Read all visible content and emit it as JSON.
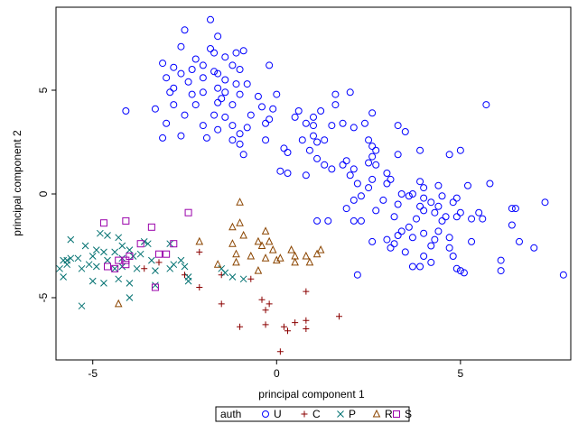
{
  "chart_data": {
    "type": "scatter",
    "xlabel": "principal component 1",
    "ylabel": "principal component 2",
    "xlim": [
      -6,
      8
    ],
    "ylim": [
      -8,
      9
    ],
    "xticks": [
      -5,
      0,
      5
    ],
    "yticks": [
      -5,
      0,
      5
    ],
    "grid": false,
    "legend": {
      "title": "auth",
      "placement": "bottom-center",
      "entries": [
        {
          "label": "U",
          "marker": "circle",
          "color": "#0000ff"
        },
        {
          "label": "C",
          "marker": "plus",
          "color": "#8b0000"
        },
        {
          "label": "P",
          "marker": "x",
          "color": "#007070"
        },
        {
          "label": "R",
          "marker": "triangle",
          "color": "#8b4500"
        },
        {
          "label": "S",
          "marker": "square",
          "color": "#9900aa"
        }
      ]
    },
    "series": [
      {
        "name": "U",
        "points": [
          [
            -1.8,
            8.4
          ],
          [
            -2.5,
            7.9
          ],
          [
            -1.6,
            7.6
          ],
          [
            -2.6,
            7.1
          ],
          [
            -1.8,
            7.0
          ],
          [
            -0.9,
            6.9
          ],
          [
            -1.7,
            6.8
          ],
          [
            -1.1,
            6.8
          ],
          [
            -1.4,
            6.6
          ],
          [
            -2.2,
            6.5
          ],
          [
            -3.1,
            6.3
          ],
          [
            -2.0,
            6.2
          ],
          [
            -1.2,
            6.2
          ],
          [
            -2.8,
            6.1
          ],
          [
            -0.2,
            6.2
          ],
          [
            -2.3,
            6.0
          ],
          [
            -1.7,
            5.9
          ],
          [
            -1.0,
            6.0
          ],
          [
            -2.6,
            5.8
          ],
          [
            -1.6,
            5.8
          ],
          [
            -2.0,
            5.6
          ],
          [
            -3.0,
            5.6
          ],
          [
            -1.4,
            5.5
          ],
          [
            -2.4,
            5.4
          ],
          [
            -1.1,
            5.3
          ],
          [
            -2.8,
            5.1
          ],
          [
            -1.6,
            5.1
          ],
          [
            -0.8,
            5.3
          ],
          [
            -2.9,
            4.9
          ],
          [
            -2.0,
            4.9
          ],
          [
            -1.4,
            4.9
          ],
          [
            -1.0,
            4.8
          ],
          [
            -2.3,
            4.8
          ],
          [
            -1.5,
            4.6
          ],
          [
            -0.5,
            4.7
          ],
          [
            0.0,
            4.8
          ],
          [
            2.0,
            4.9
          ],
          [
            1.6,
            4.8
          ],
          [
            -1.6,
            4.4
          ],
          [
            -2.8,
            4.3
          ],
          [
            -2.2,
            4.3
          ],
          [
            -1.2,
            4.3
          ],
          [
            -0.4,
            4.2
          ],
          [
            1.6,
            4.3
          ],
          [
            1.2,
            4.0
          ],
          [
            -4.1,
            4.0
          ],
          [
            -3.3,
            4.1
          ],
          [
            0.6,
            4.0
          ],
          [
            -2.5,
            3.8
          ],
          [
            -1.7,
            3.8
          ],
          [
            -1.4,
            3.7
          ],
          [
            -0.7,
            3.8
          ],
          [
            -0.1,
            4.1
          ],
          [
            0.5,
            3.7
          ],
          [
            1.0,
            3.7
          ],
          [
            -0.2,
            3.6
          ],
          [
            2.6,
            3.9
          ],
          [
            -3.0,
            3.4
          ],
          [
            -2.0,
            3.3
          ],
          [
            -1.2,
            3.3
          ],
          [
            -0.3,
            3.4
          ],
          [
            0.8,
            3.4
          ],
          [
            1.8,
            3.4
          ],
          [
            2.4,
            3.4
          ],
          [
            5.7,
            4.3
          ],
          [
            -1.6,
            3.1
          ],
          [
            -0.8,
            3.2
          ],
          [
            1.0,
            3.3
          ],
          [
            1.5,
            3.3
          ],
          [
            2.1,
            3.2
          ],
          [
            3.3,
            3.3
          ],
          [
            -3.1,
            2.7
          ],
          [
            -2.6,
            2.8
          ],
          [
            -1.2,
            2.6
          ],
          [
            1.0,
            2.8
          ],
          [
            3.5,
            3.0
          ],
          [
            1.1,
            2.5
          ],
          [
            1.3,
            2.6
          ],
          [
            0.7,
            2.6
          ],
          [
            0.2,
            2.2
          ],
          [
            -0.3,
            2.6
          ],
          [
            -1.9,
            2.7
          ],
          [
            -1.0,
            2.9
          ],
          [
            0.9,
            2.1
          ],
          [
            2.5,
            2.6
          ],
          [
            2.6,
            2.3
          ],
          [
            -1.0,
            2.4
          ],
          [
            0.3,
            2.0
          ],
          [
            3.3,
            1.9
          ],
          [
            3.9,
            2.1
          ],
          [
            -0.9,
            1.9
          ],
          [
            1.1,
            1.7
          ],
          [
            1.9,
            1.6
          ],
          [
            2.6,
            1.8
          ],
          [
            2.7,
            2.1
          ],
          [
            1.8,
            1.4
          ],
          [
            1.3,
            1.4
          ],
          [
            2.5,
            1.5
          ],
          [
            2.7,
            1.4
          ],
          [
            5.0,
            2.1
          ],
          [
            4.7,
            1.9
          ],
          [
            2.1,
            1.2
          ],
          [
            1.5,
            1.2
          ],
          [
            3.0,
            1.0
          ],
          [
            0.1,
            1.1
          ],
          [
            0.3,
            1.0
          ],
          [
            0.8,
            0.9
          ],
          [
            2.0,
            0.9
          ],
          [
            3.1,
            0.7
          ],
          [
            3.9,
            0.6
          ],
          [
            2.6,
            0.7
          ],
          [
            2.2,
            0.5
          ],
          [
            2.5,
            0.3
          ],
          [
            3.0,
            0.5
          ],
          [
            4.0,
            0.3
          ],
          [
            4.4,
            0.4
          ],
          [
            5.2,
            0.4
          ],
          [
            5.8,
            0.5
          ],
          [
            3.4,
            0.0
          ],
          [
            3.6,
            -0.1
          ],
          [
            4.5,
            -0.1
          ],
          [
            4.0,
            -0.2
          ],
          [
            3.7,
            0.0
          ],
          [
            4.9,
            -0.2
          ],
          [
            2.1,
            -0.3
          ],
          [
            2.3,
            -0.1
          ],
          [
            2.9,
            -0.3
          ],
          [
            4.2,
            -0.4
          ],
          [
            4.4,
            -0.6
          ],
          [
            4.8,
            -0.4
          ],
          [
            3.3,
            -0.5
          ],
          [
            3.9,
            -0.6
          ],
          [
            1.9,
            -0.7
          ],
          [
            2.7,
            -0.8
          ],
          [
            4.0,
            -0.8
          ],
          [
            4.3,
            -0.9
          ],
          [
            5.5,
            -0.9
          ],
          [
            5.0,
            -0.9
          ],
          [
            6.4,
            -0.7
          ],
          [
            6.5,
            -0.7
          ],
          [
            7.3,
            -0.4
          ],
          [
            1.1,
            -1.3
          ],
          [
            1.4,
            -1.3
          ],
          [
            2.3,
            -1.3
          ],
          [
            2.1,
            -1.3
          ],
          [
            3.2,
            -1.1
          ],
          [
            3.8,
            -1.2
          ],
          [
            4.6,
            -1.1
          ],
          [
            4.5,
            -1.3
          ],
          [
            4.9,
            -1.1
          ],
          [
            5.3,
            -1.2
          ],
          [
            5.6,
            -1.2
          ],
          [
            3.6,
            -1.6
          ],
          [
            3.4,
            -1.8
          ],
          [
            4.0,
            -1.9
          ],
          [
            4.4,
            -1.8
          ],
          [
            6.4,
            -1.5
          ],
          [
            2.6,
            -2.3
          ],
          [
            3.0,
            -2.2
          ],
          [
            3.3,
            -2.0
          ],
          [
            3.7,
            -2.1
          ],
          [
            4.3,
            -2.2
          ],
          [
            4.7,
            -2.1
          ],
          [
            5.3,
            -2.3
          ],
          [
            6.6,
            -2.3
          ],
          [
            7.0,
            -2.6
          ],
          [
            3.2,
            -2.4
          ],
          [
            3.1,
            -2.6
          ],
          [
            4.2,
            -2.5
          ],
          [
            4.7,
            -2.6
          ],
          [
            3.5,
            -2.8
          ],
          [
            4.0,
            -3.0
          ],
          [
            4.8,
            -3.0
          ],
          [
            6.1,
            -3.2
          ],
          [
            4.2,
            -3.3
          ],
          [
            4.9,
            -3.6
          ],
          [
            5.0,
            -3.7
          ],
          [
            3.7,
            -3.5
          ],
          [
            6.1,
            -3.7
          ],
          [
            3.9,
            -3.5
          ],
          [
            7.8,
            -3.9
          ],
          [
            2.2,
            -3.9
          ],
          [
            5.1,
            -3.8
          ]
        ]
      },
      {
        "name": "C",
        "points": [
          [
            -2.1,
            -2.8
          ],
          [
            -3.2,
            -3.3
          ],
          [
            -3.6,
            -3.6
          ],
          [
            -2.5,
            -3.9
          ],
          [
            -2.1,
            -4.5
          ],
          [
            -1.5,
            -3.9
          ],
          [
            -0.7,
            -4.1
          ],
          [
            -0.4,
            -5.1
          ],
          [
            0.8,
            -4.7
          ],
          [
            -1.5,
            -5.3
          ],
          [
            -0.2,
            -5.3
          ],
          [
            -0.3,
            -5.6
          ],
          [
            1.7,
            -5.9
          ],
          [
            -1.0,
            -6.4
          ],
          [
            -0.3,
            -6.3
          ],
          [
            0.2,
            -6.4
          ],
          [
            0.5,
            -6.2
          ],
          [
            0.8,
            -6.1
          ],
          [
            0.8,
            -6.5
          ],
          [
            0.3,
            -6.6
          ],
          [
            0.1,
            -7.6
          ]
        ]
      },
      {
        "name": "P",
        "points": [
          [
            -5.6,
            -2.2
          ],
          [
            -5.2,
            -2.5
          ],
          [
            -4.8,
            -1.9
          ],
          [
            -4.6,
            -2.0
          ],
          [
            -4.3,
            -2.1
          ],
          [
            -4.2,
            -2.5
          ],
          [
            -3.6,
            -2.3
          ],
          [
            -3.5,
            -2.4
          ],
          [
            -2.9,
            -2.4
          ],
          [
            -4.9,
            -2.7
          ],
          [
            -4.7,
            -2.8
          ],
          [
            -4.4,
            -2.8
          ],
          [
            -4.0,
            -2.7
          ],
          [
            -5.8,
            -3.2
          ],
          [
            -5.6,
            -3.1
          ],
          [
            -5.4,
            -3.1
          ],
          [
            -5.0,
            -3.0
          ],
          [
            -4.6,
            -3.2
          ],
          [
            -4.2,
            -3.1
          ],
          [
            -3.9,
            -3.0
          ],
          [
            -3.7,
            -2.9
          ],
          [
            -3.4,
            -3.2
          ],
          [
            -2.8,
            -3.4
          ],
          [
            -2.6,
            -3.2
          ],
          [
            -5.9,
            -3.6
          ],
          [
            -5.7,
            -3.4
          ],
          [
            -5.3,
            -3.6
          ],
          [
            -5.1,
            -3.4
          ],
          [
            -4.9,
            -3.5
          ],
          [
            -4.4,
            -3.6
          ],
          [
            -4.2,
            -3.5
          ],
          [
            -3.8,
            -3.6
          ],
          [
            -3.3,
            -3.7
          ],
          [
            -2.9,
            -3.6
          ],
          [
            -2.5,
            -3.5
          ],
          [
            -1.5,
            -3.6
          ],
          [
            -1.4,
            -3.8
          ],
          [
            -5.8,
            -4.0
          ],
          [
            -5.0,
            -4.2
          ],
          [
            -4.7,
            -4.3
          ],
          [
            -4.3,
            -4.1
          ],
          [
            -4.0,
            -4.3
          ],
          [
            -3.3,
            -4.4
          ],
          [
            -2.4,
            -4.0
          ],
          [
            -2.4,
            -4.2
          ],
          [
            -1.2,
            -4.0
          ],
          [
            -0.9,
            -4.1
          ],
          [
            -4.0,
            -5.0
          ],
          [
            -5.3,
            -5.4
          ],
          [
            -5.7,
            -3.2
          ]
        ]
      },
      {
        "name": "R",
        "points": [
          [
            -1.0,
            -0.4
          ],
          [
            -1.0,
            -1.4
          ],
          [
            -1.2,
            -1.6
          ],
          [
            -0.9,
            -2.0
          ],
          [
            -0.3,
            -1.8
          ],
          [
            -1.2,
            -2.4
          ],
          [
            -0.5,
            -2.3
          ],
          [
            -0.2,
            -2.3
          ],
          [
            -0.4,
            -2.5
          ],
          [
            -0.1,
            -2.7
          ],
          [
            0.4,
            -2.7
          ],
          [
            1.2,
            -2.7
          ],
          [
            1.1,
            -2.9
          ],
          [
            -1.1,
            -2.9
          ],
          [
            -0.7,
            -3.0
          ],
          [
            -0.3,
            -3.1
          ],
          [
            0.1,
            -3.1
          ],
          [
            0.5,
            -3.0
          ],
          [
            0.8,
            -3.0
          ],
          [
            0.0,
            -3.2
          ],
          [
            -1.1,
            -3.3
          ],
          [
            -0.5,
            -3.7
          ],
          [
            -1.6,
            -3.4
          ],
          [
            -4.3,
            -5.3
          ],
          [
            -2.1,
            -2.3
          ],
          [
            0.5,
            -3.3
          ],
          [
            0.9,
            -3.3
          ]
        ]
      },
      {
        "name": "S",
        "points": [
          [
            -2.4,
            -0.9
          ],
          [
            -4.7,
            -1.4
          ],
          [
            -4.1,
            -1.3
          ],
          [
            -3.4,
            -1.6
          ],
          [
            -3.7,
            -2.4
          ],
          [
            -2.8,
            -2.4
          ],
          [
            -3.2,
            -2.9
          ],
          [
            -3.0,
            -2.9
          ],
          [
            -4.0,
            -3.0
          ],
          [
            -4.3,
            -3.2
          ],
          [
            -4.1,
            -3.4
          ],
          [
            -4.6,
            -3.5
          ],
          [
            -4.4,
            -3.6
          ],
          [
            -4.1,
            -3.2
          ],
          [
            -3.3,
            -4.5
          ]
        ]
      }
    ]
  }
}
